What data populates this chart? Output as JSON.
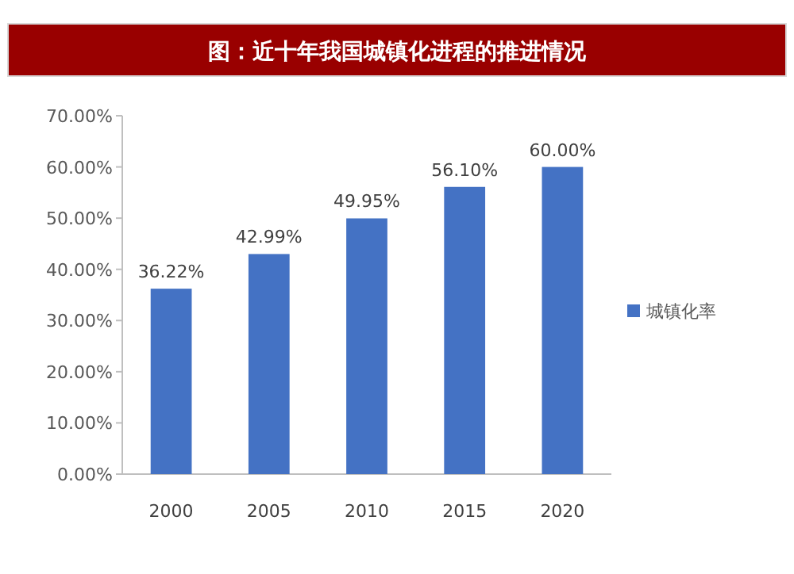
{
  "chart_data": {
    "type": "bar",
    "title": "图：近十年我国城镇化进程的推进情况",
    "categories": [
      "2000",
      "2005",
      "2010",
      "2015",
      "2020"
    ],
    "series": [
      {
        "name": "城镇化率",
        "color": "#4472c4",
        "values": [
          36.22,
          42.99,
          49.95,
          56.1,
          60.0
        ],
        "value_labels": [
          "36.22%",
          "42.99%",
          "49.95%",
          "56.10%",
          "60.00%"
        ]
      }
    ],
    "ylim": [
      0,
      70
    ],
    "yticks": [
      {
        "value": 0,
        "label": "0.00%"
      },
      {
        "value": 10,
        "label": "10.00%"
      },
      {
        "value": 20,
        "label": "20.00%"
      },
      {
        "value": 30,
        "label": "30.00%"
      },
      {
        "value": 40,
        "label": "40.00%"
      },
      {
        "value": 50,
        "label": "50.00%"
      },
      {
        "value": 60,
        "label": "60.00%"
      },
      {
        "value": 70,
        "label": "70.00%"
      }
    ],
    "legend": "right",
    "grid": false
  }
}
